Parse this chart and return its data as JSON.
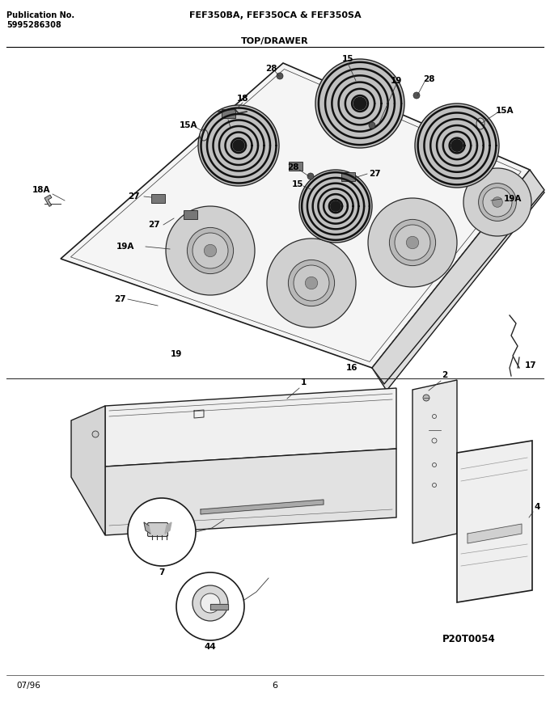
{
  "title_left_line1": "Publication No.",
  "title_left_line2": "5995286308",
  "title_center": "FEF350BA, FEF350CA & FEF350SA",
  "section_title": "TOP/DRAWER",
  "footer_left": "07/96",
  "footer_center": "6",
  "part_code": "P20T0054",
  "bg_color": "#ffffff",
  "text_color": "#000000",
  "figsize": [
    6.8,
    8.67
  ],
  "dpi": 100
}
